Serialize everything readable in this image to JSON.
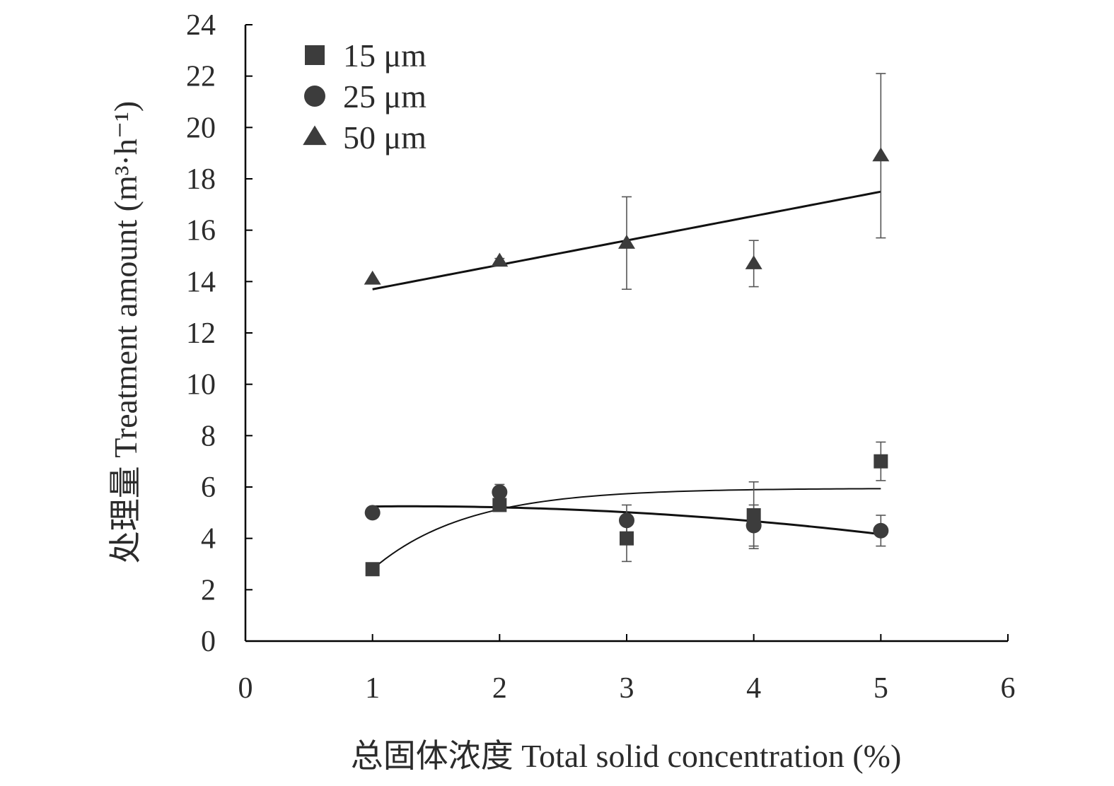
{
  "chart_data": {
    "type": "scatter",
    "xlabel": "总固体浓度 Total solid concentration (%)",
    "ylabel": "处理量 Treatment amount (m³·h⁻¹)",
    "xlim": [
      0,
      6
    ],
    "ylim": [
      0,
      24
    ],
    "x_ticks": [
      0,
      1,
      2,
      3,
      4,
      5,
      6
    ],
    "y_ticks": [
      0,
      2,
      4,
      6,
      8,
      10,
      12,
      14,
      16,
      18,
      20,
      22,
      24
    ],
    "grid": false,
    "legend_position": "top-left",
    "marker_color": "#3c3c3c",
    "series": [
      {
        "name": "15 μm",
        "marker": "square",
        "x": [
          1,
          2,
          3,
          4,
          5
        ],
        "y": [
          2.8,
          5.3,
          4.0,
          4.9,
          7.0
        ],
        "error": [
          0.05,
          0.2,
          0.9,
          1.3,
          0.75
        ],
        "trend": "logarithmic-saturating"
      },
      {
        "name": "25 μm",
        "marker": "circle",
        "x": [
          1,
          2,
          3,
          4,
          5
        ],
        "y": [
          5.0,
          5.8,
          4.7,
          4.5,
          4.3
        ],
        "error": [
          0.05,
          0.3,
          0.6,
          0.8,
          0.6
        ],
        "trend": "polynomial-decreasing"
      },
      {
        "name": "50 μm",
        "marker": "triangle",
        "x": [
          1,
          2,
          3,
          4,
          5
        ],
        "y": [
          14.1,
          14.8,
          15.5,
          14.7,
          18.9
        ],
        "error": [
          0.05,
          0.1,
          1.8,
          0.9,
          3.2
        ],
        "trend": "linear"
      }
    ]
  }
}
